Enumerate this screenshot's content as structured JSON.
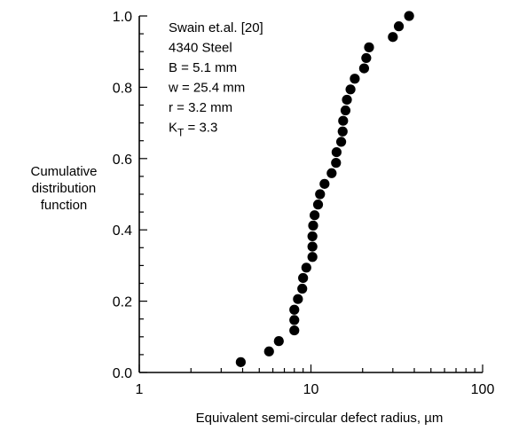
{
  "chart_data": {
    "type": "scatter",
    "title": "",
    "xlabel": "Equivalent semi-circular defect radius, µm",
    "ylabel_lines": [
      "Cumulative",
      "distribution",
      "function"
    ],
    "x_scale": "log",
    "xlim": [
      1,
      100
    ],
    "ylim": [
      0,
      1.0
    ],
    "x_ticks": [
      {
        "value": 1,
        "label": "1"
      },
      {
        "value": 10,
        "label": "10"
      },
      {
        "value": 100,
        "label": "100"
      }
    ],
    "y_ticks": [
      {
        "value": 0.0,
        "label": "0.0"
      },
      {
        "value": 0.2,
        "label": "0.2"
      },
      {
        "value": 0.4,
        "label": "0.4"
      },
      {
        "value": 0.6,
        "label": "0.6"
      },
      {
        "value": 0.8,
        "label": "0.8"
      },
      {
        "value": 1.0,
        "label": "1.0"
      }
    ],
    "grid": false,
    "annotation": {
      "lines": [
        {
          "text": "Swain et.al. [20]"
        },
        {
          "text": "4340 Steel"
        },
        {
          "text": "B = 5.1 mm"
        },
        {
          "text": "w = 25.4 mm"
        },
        {
          "text": "r = 3.2 mm"
        },
        {
          "text": "K",
          "sub": "T",
          "tail": " = 3.3"
        }
      ]
    },
    "points": [
      {
        "x": 3.9,
        "y": 0.029
      },
      {
        "x": 5.7,
        "y": 0.059
      },
      {
        "x": 6.5,
        "y": 0.088
      },
      {
        "x": 8.0,
        "y": 0.118
      },
      {
        "x": 8.0,
        "y": 0.147
      },
      {
        "x": 8.0,
        "y": 0.176
      },
      {
        "x": 8.4,
        "y": 0.206
      },
      {
        "x": 8.9,
        "y": 0.235
      },
      {
        "x": 9.0,
        "y": 0.265
      },
      {
        "x": 9.4,
        "y": 0.294
      },
      {
        "x": 10.2,
        "y": 0.324
      },
      {
        "x": 10.2,
        "y": 0.353
      },
      {
        "x": 10.2,
        "y": 0.382
      },
      {
        "x": 10.3,
        "y": 0.412
      },
      {
        "x": 10.5,
        "y": 0.441
      },
      {
        "x": 11.0,
        "y": 0.471
      },
      {
        "x": 11.3,
        "y": 0.5
      },
      {
        "x": 12.0,
        "y": 0.529
      },
      {
        "x": 13.2,
        "y": 0.559
      },
      {
        "x": 14.0,
        "y": 0.588
      },
      {
        "x": 14.1,
        "y": 0.618
      },
      {
        "x": 15.0,
        "y": 0.647
      },
      {
        "x": 15.3,
        "y": 0.676
      },
      {
        "x": 15.4,
        "y": 0.706
      },
      {
        "x": 15.9,
        "y": 0.735
      },
      {
        "x": 16.2,
        "y": 0.765
      },
      {
        "x": 17.0,
        "y": 0.794
      },
      {
        "x": 18.0,
        "y": 0.824
      },
      {
        "x": 20.4,
        "y": 0.853
      },
      {
        "x": 21.0,
        "y": 0.882
      },
      {
        "x": 21.8,
        "y": 0.912
      },
      {
        "x": 30.0,
        "y": 0.941
      },
      {
        "x": 32.5,
        "y": 0.971
      },
      {
        "x": 37.3,
        "y": 1.0
      }
    ]
  }
}
